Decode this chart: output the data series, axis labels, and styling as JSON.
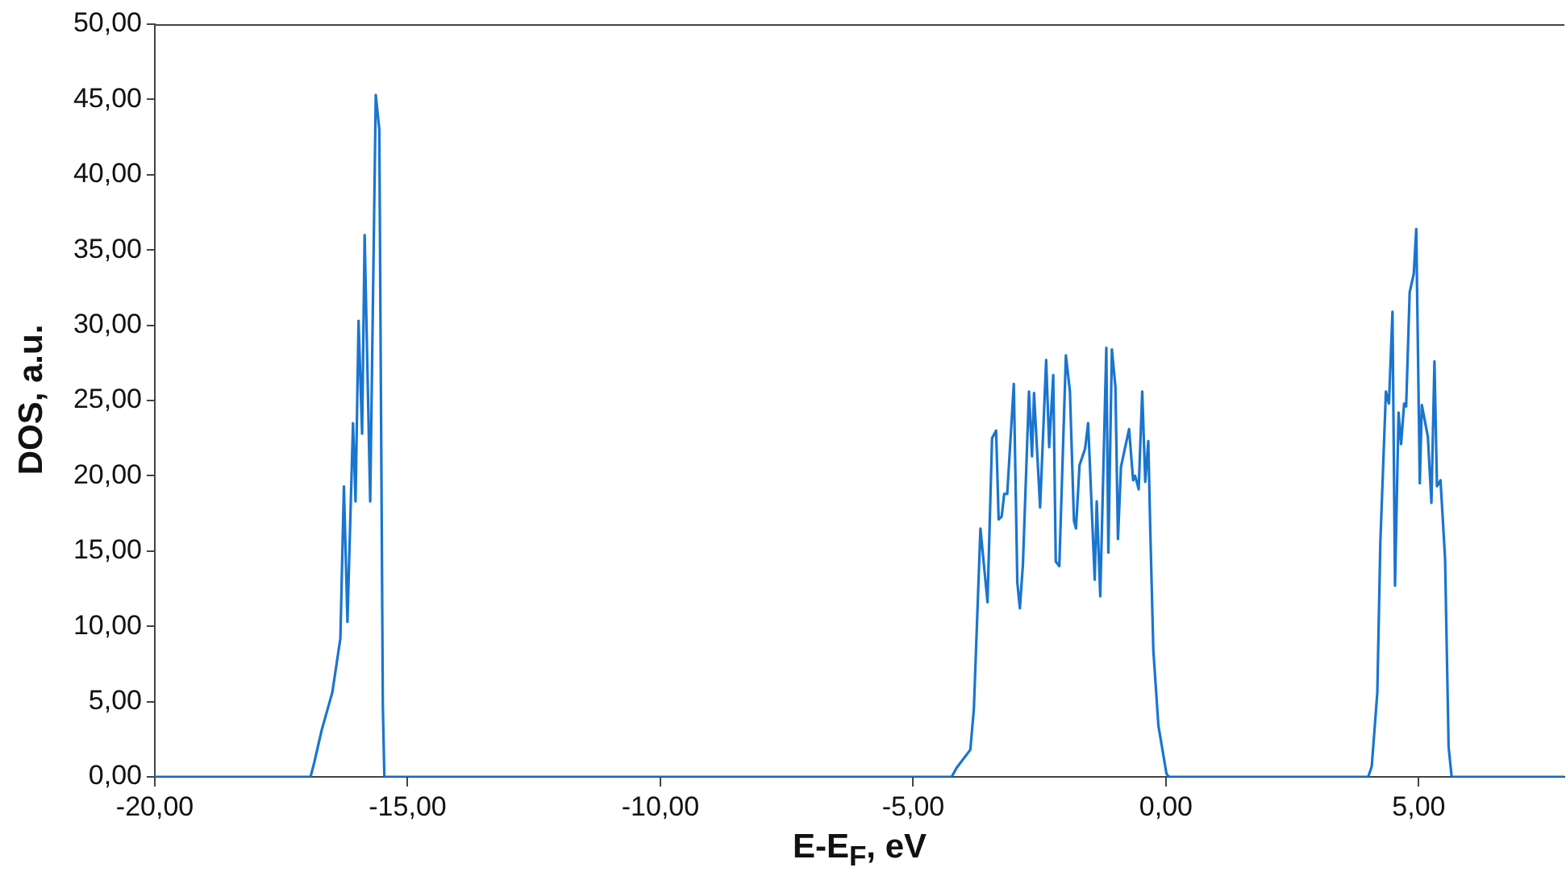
{
  "chart_data": {
    "type": "line",
    "xlabel": "E-E$_{F}$, eV",
    "ylabel": "DOS, a.u.",
    "xlim": [
      -20,
      7.88
    ],
    "ylim": [
      0,
      50
    ],
    "xticks": [
      {
        "value": -20,
        "label": "-20,00"
      },
      {
        "value": -15,
        "label": "-15,00"
      },
      {
        "value": -10,
        "label": "-10,00"
      },
      {
        "value": -5,
        "label": "-5,00"
      },
      {
        "value": 0,
        "label": "0,00"
      },
      {
        "value": 5,
        "label": "5,00"
      }
    ],
    "yticks": [
      {
        "value": 0,
        "label": "0,00"
      },
      {
        "value": 5,
        "label": "5,00"
      },
      {
        "value": 10,
        "label": "10,00"
      },
      {
        "value": 15,
        "label": "15,00"
      },
      {
        "value": 20,
        "label": "20,00"
      },
      {
        "value": 25,
        "label": "25,00"
      },
      {
        "value": 30,
        "label": "30,00"
      },
      {
        "value": 35,
        "label": "35,00"
      },
      {
        "value": 40,
        "label": "40,00"
      },
      {
        "value": 45,
        "label": "45,00"
      },
      {
        "value": 50,
        "label": "50,00"
      }
    ],
    "grid": false,
    "legend": false,
    "marker": "none",
    "line_style": "solid",
    "series": [
      {
        "color": "#1a75cf",
        "x": [
          -20,
          -16.92,
          -16.85,
          -16.7,
          -16.49,
          -16.33,
          -16.26,
          -16.19,
          -16.08,
          -16.03,
          -15.97,
          -15.9,
          -15.85,
          -15.74,
          -15.63,
          -15.56,
          -15.49,
          -15.46,
          -4.24,
          -4.14,
          -3.87,
          -3.8,
          -3.67,
          -3.53,
          -3.44,
          -3.36,
          -3.31,
          -3.25,
          -3.2,
          -3.14,
          -3.01,
          -2.94,
          -2.89,
          -2.83,
          -2.71,
          -2.65,
          -2.61,
          -2.49,
          -2.37,
          -2.31,
          -2.23,
          -2.18,
          -2.11,
          -1.98,
          -1.9,
          -1.82,
          -1.78,
          -1.71,
          -1.6,
          -1.54,
          -1.41,
          -1.37,
          -1.3,
          -1.18,
          -1.14,
          -1.07,
          -1.0,
          -0.95,
          -0.89,
          -0.73,
          -0.65,
          -0.61,
          -0.54,
          -0.47,
          -0.41,
          -0.35,
          -0.31,
          -0.25,
          -0.15,
          0.01,
          0.06,
          4.0,
          4.07,
          4.18,
          4.24,
          4.35,
          4.41,
          4.48,
          4.53,
          4.6,
          4.65,
          4.71,
          4.75,
          4.82,
          4.9,
          4.95,
          5.02,
          5.06,
          5.18,
          5.25,
          5.31,
          5.36,
          5.43,
          5.52,
          5.59,
          5.65,
          7.88
        ],
        "values": [
          0,
          0,
          0.9,
          3.1,
          5.6,
          9.2,
          19.3,
          10.3,
          23.5,
          18.3,
          30.3,
          22.8,
          36.0,
          18.3,
          45.3,
          43.0,
          4.7,
          0,
          0,
          0.6,
          1.8,
          4.5,
          16.5,
          11.6,
          22.5,
          23.0,
          17.1,
          17.3,
          18.8,
          18.8,
          26.1,
          12.9,
          11.2,
          14.1,
          25.6,
          21.3,
          25.5,
          17.9,
          27.7,
          21.9,
          26.7,
          14.3,
          14.0,
          28.0,
          25.6,
          17.0,
          16.5,
          20.7,
          21.8,
          23.5,
          13.1,
          18.3,
          12.0,
          28.5,
          14.9,
          28.4,
          25.9,
          15.8,
          20.6,
          23.1,
          19.7,
          20.0,
          19.1,
          25.6,
          19.6,
          22.3,
          16.3,
          8.4,
          3.4,
          0.2,
          0,
          0,
          0.7,
          5.6,
          15.6,
          25.6,
          24.8,
          30.9,
          12.7,
          24.2,
          22.1,
          24.8,
          24.6,
          32.2,
          33.4,
          36.4,
          19.5,
          24.7,
          22.6,
          18.2,
          27.6,
          19.3,
          19.7,
          14.5,
          2.0,
          0,
          0
        ]
      }
    ]
  }
}
